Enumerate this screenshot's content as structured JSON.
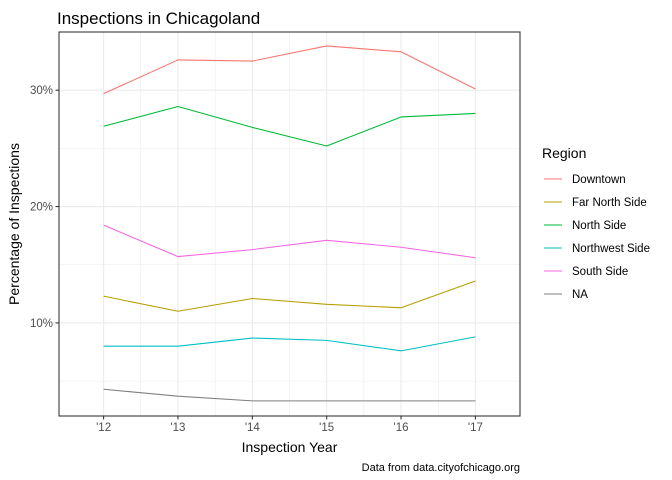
{
  "chart_data": {
    "type": "line",
    "title": "Inspections in Chicagoland",
    "xlabel": "Inspection Year",
    "ylabel": "Percentage of Inspections",
    "caption": "Data from data.cityofchicago.org",
    "x": [
      "'12",
      "'13",
      "'14",
      "'15",
      "'16",
      "'17"
    ],
    "xlim": [
      -0.6,
      5.6
    ],
    "ylim": [
      2.0,
      35.0
    ],
    "yticks": [
      10,
      20,
      30
    ],
    "ytick_labels": [
      "10%",
      "20%",
      "30%"
    ],
    "grid": true,
    "legend": {
      "title": "Region",
      "position": "right"
    },
    "series": [
      {
        "name": "Downtown",
        "color": "#F8766D",
        "values": [
          29.7,
          32.6,
          32.5,
          33.8,
          33.3,
          30.1
        ]
      },
      {
        "name": "Far North Side",
        "color": "#B79F00",
        "values": [
          12.3,
          11.0,
          12.1,
          11.6,
          11.3,
          13.6
        ]
      },
      {
        "name": "North Side",
        "color": "#00BA38",
        "values": [
          26.9,
          28.6,
          26.8,
          25.2,
          27.7,
          28.0
        ]
      },
      {
        "name": "Northwest Side",
        "color": "#00BFC4",
        "values": [
          8.0,
          8.0,
          8.7,
          8.5,
          7.6,
          8.8
        ]
      },
      {
        "name": "South Side",
        "color": "#F564E3",
        "values": [
          18.4,
          15.7,
          16.3,
          17.1,
          16.5,
          15.6
        ]
      },
      {
        "name": "NA",
        "color": "#7F7F7F",
        "values": [
          4.3,
          3.7,
          3.3,
          3.3,
          3.3,
          3.3
        ]
      }
    ]
  }
}
